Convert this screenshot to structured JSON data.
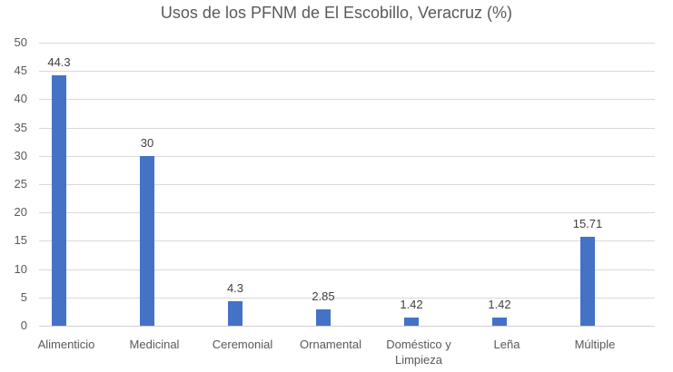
{
  "chart_data": {
    "type": "bar",
    "title": "Usos de los PFNM de El Escobillo, Veracruz (%)",
    "xlabel": "",
    "ylabel": "",
    "ylim": [
      0,
      50
    ],
    "yticks": [
      0,
      5,
      10,
      15,
      20,
      25,
      30,
      35,
      40,
      45,
      50
    ],
    "grid": true,
    "legend": "none",
    "bar_color": "#4472c4",
    "categories": [
      "Alimenticio",
      "Medicinal",
      "Ceremonial",
      "Ornamental",
      "Doméstico y Limpieza",
      "Leña",
      "Múltiple"
    ],
    "values": [
      44.3,
      30,
      4.3,
      2.85,
      1.42,
      1.42,
      15.71
    ],
    "data_labels": [
      "44.3",
      "30",
      "4.3",
      "2.85",
      "1.42",
      "1.42",
      "15.71"
    ]
  }
}
